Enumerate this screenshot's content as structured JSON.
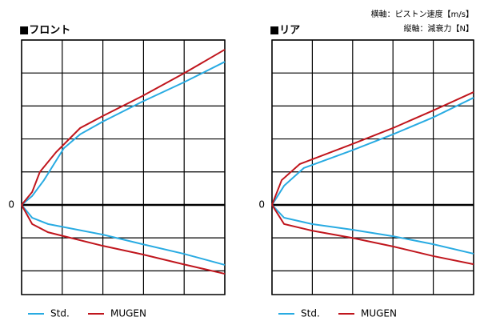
{
  "axis_notes": [
    "横軸：ピストン速度【m/s】",
    "縦軸：減衰力【N】"
  ],
  "chart_data": [
    {
      "type": "line",
      "title": "■フロント",
      "xlim": [
        0,
        5
      ],
      "ylim": [
        -2.72,
        5
      ],
      "yticks": [
        0
      ],
      "grid": true,
      "series": [
        {
          "name": "Std.",
          "color": "#29abe2",
          "x": [
            0,
            0.26,
            0.55,
            1.04,
            1.44,
            1.99,
            2.97,
            3.98,
            5
          ],
          "values": [
            0,
            0.27,
            0.75,
            1.72,
            2.14,
            2.52,
            3.13,
            3.71,
            4.34
          ],
          "rebound_x": [
            0,
            0.26,
            0.65,
            1.99,
            2.97,
            3.98,
            5
          ],
          "rebound_values": [
            0,
            -0.39,
            -0.58,
            -0.9,
            -1.19,
            -1.48,
            -1.82
          ]
        },
        {
          "name": "MUGEN",
          "color": "#c0161d",
          "x": [
            0,
            0.26,
            0.45,
            0.85,
            1.44,
            1.99,
            2.97,
            3.98,
            5
          ],
          "values": [
            0,
            0.39,
            1.0,
            1.6,
            2.33,
            2.69,
            3.3,
            3.98,
            4.71
          ],
          "rebound_x": [
            0,
            0.26,
            0.65,
            1.99,
            2.97,
            3.98,
            5
          ],
          "rebound_values": [
            0,
            -0.58,
            -0.83,
            -1.24,
            -1.5,
            -1.8,
            -2.09
          ]
        }
      ]
    },
    {
      "type": "line",
      "title": "■リア",
      "xlim": [
        0,
        5
      ],
      "ylim": [
        -2.72,
        5
      ],
      "yticks": [
        0
      ],
      "grid": true,
      "series": [
        {
          "name": "Std.",
          "color": "#29abe2",
          "x": [
            0,
            0.3,
            0.79,
            1.98,
            3,
            3.99,
            5
          ],
          "values": [
            0,
            0.58,
            1.12,
            1.65,
            2.14,
            2.65,
            3.25
          ],
          "rebound_x": [
            0,
            0.3,
            0.99,
            1.98,
            3,
            3.99,
            5
          ],
          "rebound_values": [
            0,
            -0.39,
            -0.58,
            -0.75,
            -0.95,
            -1.19,
            -1.48
          ]
        },
        {
          "name": "MUGEN",
          "color": "#c0161d",
          "x": [
            0,
            0.24,
            0.69,
            1.98,
            3,
            3.99,
            5
          ],
          "values": [
            0,
            0.75,
            1.24,
            1.84,
            2.33,
            2.86,
            3.42
          ],
          "rebound_x": [
            0,
            0.3,
            0.99,
            1.98,
            3,
            3.99,
            5
          ],
          "rebound_values": [
            0,
            -0.58,
            -0.78,
            -1.0,
            -1.26,
            -1.55,
            -1.8
          ]
        }
      ]
    }
  ]
}
